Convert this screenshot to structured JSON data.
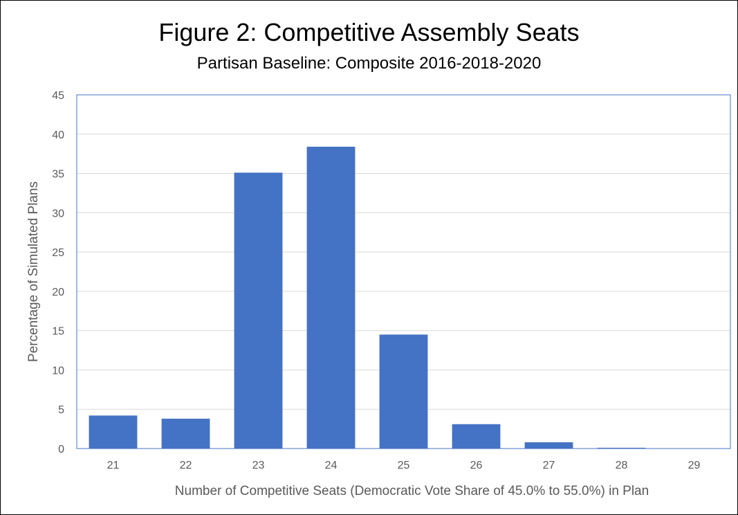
{
  "chart_data": {
    "type": "bar",
    "title": "Figure 2: Competitive Assembly Seats",
    "subtitle": "Partisan Baseline: Composite 2016-2018-2020",
    "xlabel": "Number of Competitive Seats (Democratic Vote Share of 45.0% to 55.0%) in Plan",
    "ylabel": "Percentage of Simulated Plans",
    "categories": [
      "21",
      "22",
      "23",
      "24",
      "25",
      "26",
      "27",
      "28",
      "29"
    ],
    "values": [
      4.2,
      3.8,
      35.1,
      38.4,
      14.5,
      3.1,
      0.8,
      0.1,
      0.0
    ],
    "ylim": [
      0,
      45
    ],
    "yticks": [
      0,
      5,
      10,
      15,
      20,
      25,
      30,
      35,
      40,
      45
    ],
    "grid": true,
    "legend": "none",
    "colors": {
      "bar": "#4472c4",
      "grid": "#d9d9d9",
      "plot_border": "#4472c4",
      "text": "#595959"
    }
  }
}
